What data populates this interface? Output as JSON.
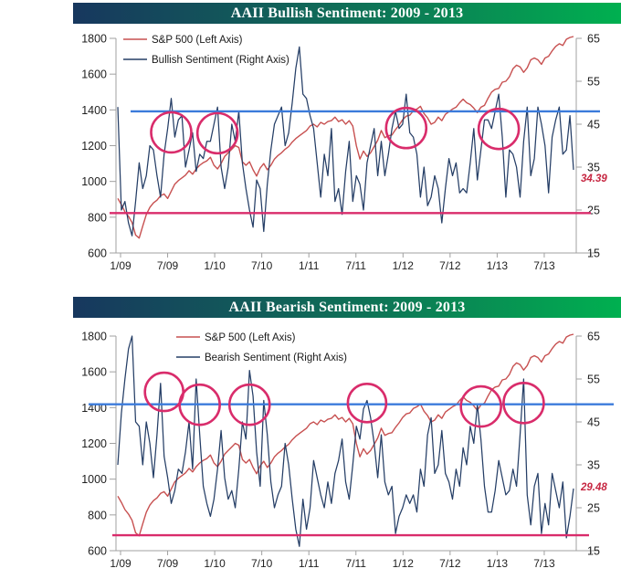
{
  "page": {
    "background": "#FFFFFF"
  },
  "chart_data": [
    {
      "type": "line",
      "title": "AAII Bullish Sentiment: 2009 - 2013",
      "title_bar_colors": [
        "#17375E",
        "#00B050"
      ],
      "legend": [
        {
          "label": "S&P 500 (Left Axis)",
          "color": "#C75050"
        },
        {
          "label": "Bullish Sentiment (Right Axis)",
          "color": "#253E66"
        }
      ],
      "x_tick_labels": [
        "1/09",
        "7/09",
        "1/10",
        "7/10",
        "1/11",
        "7/11",
        "1/12",
        "7/12",
        "1/13",
        "7/13"
      ],
      "left_axis": {
        "range": [
          600,
          1800
        ],
        "label_values": [
          1800,
          1600,
          1400,
          1200,
          1000,
          800,
          600
        ]
      },
      "right_axis": {
        "range": [
          15,
          65
        ],
        "label_values": [
          65,
          55,
          45,
          35,
          25,
          15
        ]
      },
      "series": [
        {
          "name": "S&P 500",
          "axis": "left",
          "color": "#C75050",
          "values": [
            905,
            870,
            830,
            805,
            770,
            700,
            683,
            750,
            815,
            855,
            880,
            895,
            920,
            930,
            905,
            945,
            985,
            1005,
            1020,
            1035,
            1060,
            1040,
            1070,
            1090,
            1105,
            1115,
            1135,
            1090,
            1070,
            1100,
            1140,
            1160,
            1180,
            1200,
            1190,
            1110,
            1090,
            1110,
            1065,
            1030,
            1075,
            1100,
            1065,
            1090,
            1125,
            1145,
            1160,
            1180,
            1195,
            1220,
            1240,
            1255,
            1270,
            1285,
            1310,
            1320,
            1305,
            1330,
            1320,
            1335,
            1340,
            1360,
            1335,
            1345,
            1320,
            1340,
            1310,
            1200,
            1125,
            1170,
            1140,
            1160,
            1195,
            1230,
            1285,
            1245,
            1255,
            1260,
            1290,
            1315,
            1345,
            1365,
            1370,
            1395,
            1405,
            1420,
            1380,
            1355,
            1320,
            1330,
            1360,
            1340,
            1375,
            1390,
            1405,
            1415,
            1440,
            1460,
            1440,
            1430,
            1410,
            1385,
            1415,
            1425,
            1465,
            1500,
            1515,
            1520,
            1555,
            1560,
            1585,
            1630,
            1650,
            1640,
            1610,
            1635,
            1680,
            1690,
            1680,
            1655,
            1690,
            1700,
            1730,
            1755,
            1770,
            1760,
            1795,
            1805,
            1810
          ]
        },
        {
          "name": "Bullish Sentiment",
          "axis": "right",
          "color": "#253E66",
          "values": [
            49,
            25,
            27,
            22,
            19,
            27,
            36,
            30,
            33,
            40,
            39,
            33,
            28,
            38,
            44,
            51,
            42,
            46,
            47,
            35,
            39,
            43,
            34,
            38,
            37,
            41,
            41,
            45,
            49,
            35,
            30,
            35,
            45,
            41,
            48,
            36,
            30,
            25,
            21,
            32,
            30,
            20,
            31,
            39,
            45,
            47,
            49,
            40,
            43,
            50,
            58,
            63,
            52,
            51,
            47,
            44,
            36,
            28,
            38,
            33,
            44,
            27,
            30,
            24,
            34,
            41,
            27,
            33,
            31,
            25,
            36,
            40,
            44,
            33,
            41,
            33,
            38,
            44,
            48,
            44,
            45,
            52,
            43,
            42,
            38,
            28,
            35,
            26,
            28,
            33,
            30,
            22,
            30,
            37,
            33,
            36,
            29,
            30,
            29,
            36,
            44,
            32,
            39,
            46,
            46,
            44,
            48,
            52,
            42,
            28,
            39,
            38,
            35,
            28,
            41,
            49,
            33,
            37,
            49,
            45,
            40,
            29,
            42,
            46,
            49,
            38,
            39,
            47,
            34.39
          ]
        }
      ],
      "reference_lines": [
        {
          "name": "upper-band",
          "axis": "right",
          "value": 48.0,
          "color": "#3B7BDB",
          "x_extent": [
            143,
            657
          ]
        },
        {
          "name": "lower-band",
          "axis": "right",
          "value": 24.3,
          "color": "#D92C6B",
          "x_extent": [
            120,
            647
          ]
        }
      ],
      "highlight_circles": [
        {
          "index": 15,
          "value": 43.1,
          "r": 22
        },
        {
          "index": 28,
          "value": 42.9,
          "r": 22
        },
        {
          "index": 81,
          "value": 44.1,
          "r": 22
        },
        {
          "index": 107,
          "value": 43.9,
          "r": 22
        }
      ],
      "circle_color": "#D92C6B",
      "end_label": {
        "text": "34.39",
        "color": "#C62641"
      }
    },
    {
      "type": "line",
      "title": "AAII Bearish Sentiment: 2009 - 2013",
      "title_bar_colors": [
        "#17375E",
        "#00B050"
      ],
      "legend": [
        {
          "label": "S&P 500 (Left Axis)",
          "color": "#C75050"
        },
        {
          "label": "Bearish Sentiment (Right Axis)",
          "color": "#253E66"
        }
      ],
      "x_tick_labels": [
        "1/09",
        "7/09",
        "1/10",
        "7/10",
        "1/11",
        "7/11",
        "1/12",
        "7/12",
        "1/13",
        "7/13"
      ],
      "left_axis": {
        "range": [
          600,
          1800
        ],
        "label_values": [
          1800,
          1600,
          1400,
          1200,
          1000,
          800,
          600
        ]
      },
      "right_axis": {
        "range": [
          15,
          65
        ],
        "label_values": [
          65,
          55,
          45,
          35,
          25,
          15
        ]
      },
      "series": [
        {
          "name": "S&P 500",
          "axis": "left",
          "color": "#C75050",
          "values": [
            905,
            870,
            830,
            805,
            770,
            700,
            683,
            750,
            815,
            855,
            880,
            895,
            920,
            930,
            905,
            945,
            985,
            1005,
            1020,
            1035,
            1060,
            1040,
            1070,
            1090,
            1105,
            1115,
            1135,
            1090,
            1070,
            1100,
            1140,
            1160,
            1180,
            1200,
            1190,
            1110,
            1090,
            1110,
            1065,
            1030,
            1075,
            1100,
            1065,
            1090,
            1125,
            1145,
            1160,
            1180,
            1195,
            1220,
            1240,
            1255,
            1270,
            1285,
            1310,
            1320,
            1305,
            1330,
            1320,
            1335,
            1340,
            1360,
            1335,
            1345,
            1320,
            1340,
            1310,
            1200,
            1125,
            1170,
            1140,
            1160,
            1195,
            1230,
            1285,
            1245,
            1255,
            1260,
            1290,
            1315,
            1345,
            1365,
            1370,
            1395,
            1405,
            1420,
            1380,
            1355,
            1320,
            1330,
            1360,
            1340,
            1375,
            1390,
            1405,
            1415,
            1440,
            1460,
            1440,
            1430,
            1410,
            1385,
            1415,
            1425,
            1465,
            1500,
            1515,
            1520,
            1555,
            1560,
            1585,
            1630,
            1650,
            1640,
            1610,
            1635,
            1680,
            1690,
            1680,
            1655,
            1690,
            1700,
            1730,
            1755,
            1770,
            1760,
            1795,
            1805,
            1810
          ]
        },
        {
          "name": "Bearish Sentiment",
          "axis": "right",
          "color": "#253E66",
          "values": [
            35,
            47,
            55,
            62,
            65,
            45,
            44,
            35,
            45,
            40,
            32,
            42,
            54,
            37,
            32,
            26,
            29,
            34,
            33,
            38,
            45,
            34,
            55,
            42,
            30,
            26,
            23,
            27,
            34,
            43,
            32,
            27,
            29,
            25,
            34,
            45,
            41,
            57,
            51,
            38,
            30,
            50,
            42,
            31,
            25,
            28,
            30,
            40,
            35,
            27,
            20,
            16,
            27,
            20,
            25,
            36,
            32,
            28,
            25,
            31,
            26,
            33,
            36,
            41,
            31,
            27,
            35,
            44,
            41,
            48,
            50,
            46,
            40,
            32,
            42,
            31,
            28,
            30,
            19,
            23,
            25,
            28,
            26,
            28,
            24,
            34,
            30,
            42,
            46,
            33,
            35,
            43,
            33,
            31,
            27,
            34,
            30,
            39,
            35,
            44,
            40,
            49,
            41,
            30,
            24,
            24,
            29,
            36,
            32,
            28,
            29,
            34,
            30,
            42,
            55,
            28,
            21,
            30,
            33,
            19,
            26,
            21,
            33,
            29,
            25,
            31,
            18,
            23,
            29.48
          ]
        }
      ],
      "reference_lines": [
        {
          "name": "upper-band",
          "axis": "right",
          "value": 49.1,
          "color": "#3B7BDB",
          "x_extent": [
            97,
            672
          ]
        },
        {
          "name": "lower-band",
          "axis": "right",
          "value": 18.6,
          "color": "#D92C6B",
          "x_extent": [
            123,
            645
          ]
        }
      ],
      "highlight_circles": [
        {
          "index": 13,
          "value": 52.0,
          "r": 21
        },
        {
          "index": 23,
          "value": 49.0,
          "r": 22
        },
        {
          "index": 37,
          "value": 49.0,
          "r": 22
        },
        {
          "index": 70,
          "value": 49.4,
          "r": 21
        },
        {
          "index": 102,
          "value": 48.6,
          "r": 22
        },
        {
          "index": 114,
          "value": 49.4,
          "r": 22
        }
      ],
      "circle_color": "#D92C6B",
      "end_label": {
        "text": "29.48",
        "color": "#C62641"
      }
    }
  ]
}
